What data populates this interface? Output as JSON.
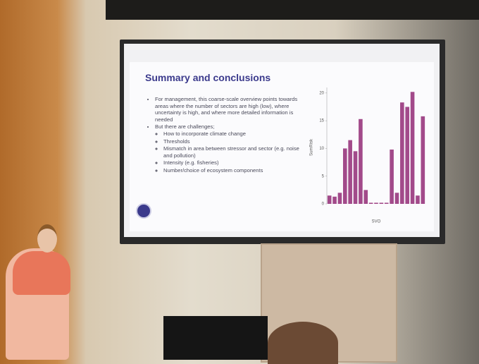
{
  "slide": {
    "title": "Summary and conclusions",
    "bullets": [
      {
        "text": "For management, this coarse-scale overview points towards areas where the number of sectors are high (low), where uncertainty is high, and where more detailed information is needed",
        "sub": []
      },
      {
        "text": "But there are challenges;",
        "sub": [
          "How to incorporate climate change",
          "Thresholds",
          "Mismatch in area between stressor and sector (e.g. noise and pollution)",
          "Intensity (e.g. fisheries)",
          "Number/choice of ecosystem components"
        ]
      }
    ]
  },
  "chart_data": {
    "type": "bar",
    "ylabel": "SumRisk",
    "xlabel": "SVO",
    "categories": [
      null,
      null,
      null,
      null,
      null,
      null,
      null,
      null,
      null,
      null,
      null,
      null,
      null,
      null,
      null,
      null,
      null,
      null,
      null
    ],
    "values": [
      1.5,
      1.3,
      2,
      10,
      11.5,
      9.5,
      15.3,
      2.5,
      0.2,
      0.2,
      0.2,
      0.2,
      9.8,
      2,
      18.3,
      17.5,
      20.2,
      1.5,
      15.8
    ],
    "color": "#a24a8a",
    "ylim": [
      0,
      21
    ],
    "yticks": [
      0,
      5,
      10,
      15,
      20
    ]
  }
}
